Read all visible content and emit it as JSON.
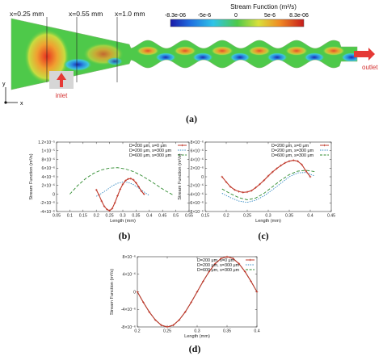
{
  "panel_a": {
    "colorbar": {
      "title": "Stream Function  (m²/s)",
      "ticks": [
        "-8.3e-06",
        "-5e-6",
        "0",
        "5e-6",
        "8.3e-06"
      ]
    },
    "markers": [
      "x=0.25 mm",
      "x=0.55 mm",
      "x=1.0 mm"
    ],
    "inlet_label": "inlet",
    "outlet_label": "outlet",
    "axis_y": "y",
    "axis_x": "x"
  },
  "panel_labels": [
    "(a)",
    "(b)",
    "(c)",
    "(d)"
  ],
  "legend_labels": [
    "D=200 μm, s=0 μm",
    "D=200 μm, s=300 μm",
    "D=600 μm, s=300 μm"
  ],
  "colors": {
    "series_s0": "#c0392b",
    "series_d200_s300": "#2e86c1",
    "series_d600_s300": "#2e8b2e",
    "inlet_arrow": "#e53935",
    "outlet_arrow": "#e53935"
  },
  "chart_data": [
    {
      "type": "line",
      "panel": "(b)",
      "xlabel": "Length (mm)",
      "ylabel": "Stream Function (m²/s)",
      "xlim": [
        0.05,
        0.55
      ],
      "ylim": [
        -4e-06,
        1.2e-05
      ],
      "xticks": [
        "0.05",
        "0.1",
        "0.15",
        "0.2",
        "0.25",
        "0.3",
        "0.35",
        "0.4",
        "0.45",
        "0.5",
        "0.55"
      ],
      "yticks": [
        "-4×10⁻⁶",
        "-2×10⁻⁶",
        "0",
        "2×10⁻⁶",
        "4×10⁻⁶",
        "6×10⁻⁶",
        "8×10⁻⁶",
        "1×10⁻⁵",
        "1.2×10⁻⁵"
      ],
      "series": [
        {
          "name": "D=200 μm, s=0 μm",
          "style": "solid-markers",
          "x": [
            0.2,
            0.21,
            0.22,
            0.23,
            0.24,
            0.25,
            0.26,
            0.27,
            0.28,
            0.29,
            0.3,
            0.31,
            0.32,
            0.33,
            0.34,
            0.35,
            0.36,
            0.37,
            0.38
          ],
          "y": [
            1e-06,
            -2e-07,
            -1.6e-06,
            -2.8e-06,
            -3.5e-06,
            -3.8e-06,
            -3.3e-06,
            -2e-06,
            -4e-07,
            1.1e-06,
            2.3e-06,
            3.1e-06,
            3.5e-06,
            3.6e-06,
            3.3e-06,
            2.6e-06,
            1.7e-06,
            7e-07,
            0.0
          ]
        },
        {
          "name": "D=200 μm, s=300 μm",
          "style": "dotted",
          "x": [
            0.2,
            0.22,
            0.24,
            0.26,
            0.28,
            0.3,
            0.32,
            0.34,
            0.36,
            0.38,
            0.4
          ],
          "y": [
            -5e-07,
            2e-07,
            1e-06,
            1.9e-06,
            2.5e-06,
            2.8e-06,
            2.7e-06,
            2.2e-06,
            1.4e-06,
            5e-07,
            -3e-07
          ]
        },
        {
          "name": "D=600 μm, s=300 μm",
          "style": "dashed",
          "x": [
            0.1,
            0.13,
            0.16,
            0.19,
            0.22,
            0.25,
            0.28,
            0.31,
            0.34,
            0.37,
            0.4,
            0.43,
            0.46,
            0.49
          ],
          "y": [
            0.0,
            2e-06,
            3.6e-06,
            4.8e-06,
            5.6e-06,
            6e-06,
            6.1e-06,
            5.8e-06,
            5.2e-06,
            4.3e-06,
            3.2e-06,
            2e-06,
            8e-07,
            -2e-07
          ]
        }
      ]
    },
    {
      "type": "line",
      "panel": "(c)",
      "xlabel": "Length (mm)",
      "ylabel": "Stream Function (m²/s)",
      "xlim": [
        0.15,
        0.45
      ],
      "ylim": [
        -8e-06,
        8e-06
      ],
      "xticks": [
        "0.15",
        "0.2",
        "0.25",
        "0.3",
        "0.35",
        "0.4",
        "0.45"
      ],
      "yticks": [
        "-8×10⁻⁶",
        "-6×10⁻⁶",
        "-4×10⁻⁶",
        "-2×10⁻⁶",
        "0",
        "2×10⁻⁶",
        "4×10⁻⁶",
        "6×10⁻⁶",
        "8×10⁻⁶"
      ],
      "series": [
        {
          "name": "D=200 μm, s=0 μm",
          "style": "solid-markers",
          "x": [
            0.19,
            0.2,
            0.21,
            0.22,
            0.23,
            0.24,
            0.25,
            0.26,
            0.27,
            0.28,
            0.29,
            0.3,
            0.31,
            0.32,
            0.33,
            0.34,
            0.35,
            0.36,
            0.37,
            0.38,
            0.39,
            0.4
          ],
          "y": [
            0.0,
            -1.2e-06,
            -2.3e-06,
            -3e-06,
            -3.4e-06,
            -3.6e-06,
            -3.5e-06,
            -3.2e-06,
            -2.5e-06,
            -1.7e-06,
            -8e-07,
            2e-07,
            1.1e-06,
            1.9e-06,
            2.6e-06,
            3.2e-06,
            3.6e-06,
            3.8e-06,
            3.6e-06,
            2.8e-06,
            1.3e-06,
            0.0
          ]
        },
        {
          "name": "D=200 μm, s=300 μm",
          "style": "dotted",
          "x": [
            0.19,
            0.21,
            0.23,
            0.25,
            0.27,
            0.29,
            0.31,
            0.33,
            0.35,
            0.37,
            0.39,
            0.41
          ],
          "y": [
            -3.8e-06,
            -4.8e-06,
            -5.6e-06,
            -5.9e-06,
            -5.4e-06,
            -4.4e-06,
            -3e-06,
            -1.5e-06,
            0.0,
            9e-07,
            1e-06,
            2e-07
          ]
        },
        {
          "name": "D=600 μm, s=300 μm",
          "style": "dashed",
          "x": [
            0.19,
            0.21,
            0.23,
            0.25,
            0.27,
            0.29,
            0.31,
            0.33,
            0.35,
            0.37,
            0.39,
            0.41
          ],
          "y": [
            -2.8e-06,
            -3.9e-06,
            -4.8e-06,
            -5.3e-06,
            -4.9e-06,
            -3.8e-06,
            -2.3e-06,
            -8e-07,
            5e-07,
            1.3e-06,
            1.5e-06,
            1.2e-06
          ]
        }
      ]
    },
    {
      "type": "line",
      "panel": "(d)",
      "xlabel": "Length (mm)",
      "ylabel": "Stream Function (m²/s)",
      "xlim": [
        0.2,
        0.4
      ],
      "ylim": [
        -8e-06,
        8e-06
      ],
      "xticks": [
        "0.2",
        "0.25",
        "0.3",
        "0.35",
        "0.4"
      ],
      "yticks": [
        "-8×10⁻⁶",
        "-4×10⁻⁶",
        "0",
        "4×10⁻⁶",
        "8×10⁻⁶"
      ],
      "series": [
        {
          "name": "D=200 μm, s=0 μm",
          "style": "solid-markers",
          "x": [
            0.2,
            0.21,
            0.22,
            0.23,
            0.24,
            0.25,
            0.26,
            0.27,
            0.28,
            0.29,
            0.3,
            0.31,
            0.32,
            0.33,
            0.34,
            0.35,
            0.36,
            0.37,
            0.38,
            0.39,
            0.4
          ],
          "y": [
            0.0,
            -2.4e-06,
            -4.6e-06,
            -6.4e-06,
            -7.6e-06,
            -8e-06,
            -7.6e-06,
            -6.4e-06,
            -4.6e-06,
            -2.4e-06,
            0.0,
            2.4e-06,
            4.6e-06,
            6.4e-06,
            7.6e-06,
            8e-06,
            7.6e-06,
            6.4e-06,
            4.6e-06,
            2.4e-06,
            0.0
          ]
        },
        {
          "name": "D=200 μm, s=300 μm",
          "style": "dotted",
          "x": [
            0.2,
            0.21,
            0.22,
            0.23,
            0.24,
            0.25,
            0.26,
            0.27,
            0.28,
            0.29,
            0.3,
            0.31,
            0.32,
            0.33,
            0.34,
            0.35,
            0.36,
            0.37,
            0.38,
            0.39,
            0.4
          ],
          "y": [
            0.0,
            -2.4e-06,
            -4.6e-06,
            -6.4e-06,
            -7.6e-06,
            -8e-06,
            -7.6e-06,
            -6.4e-06,
            -4.6e-06,
            -2.4e-06,
            0.0,
            2.4e-06,
            4.6e-06,
            6.4e-06,
            7.6e-06,
            8e-06,
            7.6e-06,
            6.4e-06,
            4.6e-06,
            2.4e-06,
            0.0
          ]
        },
        {
          "name": "D=600 μm, s=300 μm",
          "style": "dashed",
          "x": [
            0.2,
            0.21,
            0.22,
            0.23,
            0.24,
            0.25,
            0.26,
            0.27,
            0.28,
            0.29,
            0.3,
            0.31,
            0.32,
            0.33,
            0.34,
            0.35,
            0.36,
            0.37,
            0.38,
            0.39,
            0.4
          ],
          "y": [
            0.0,
            -2.4e-06,
            -4.6e-06,
            -6.4e-06,
            -7.6e-06,
            -8e-06,
            -7.6e-06,
            -6.4e-06,
            -4.6e-06,
            -2.4e-06,
            0.0,
            2.4e-06,
            4.6e-06,
            6.4e-06,
            7.6e-06,
            8e-06,
            7.6e-06,
            6.4e-06,
            4.6e-06,
            2.4e-06,
            0.0
          ]
        }
      ]
    }
  ]
}
